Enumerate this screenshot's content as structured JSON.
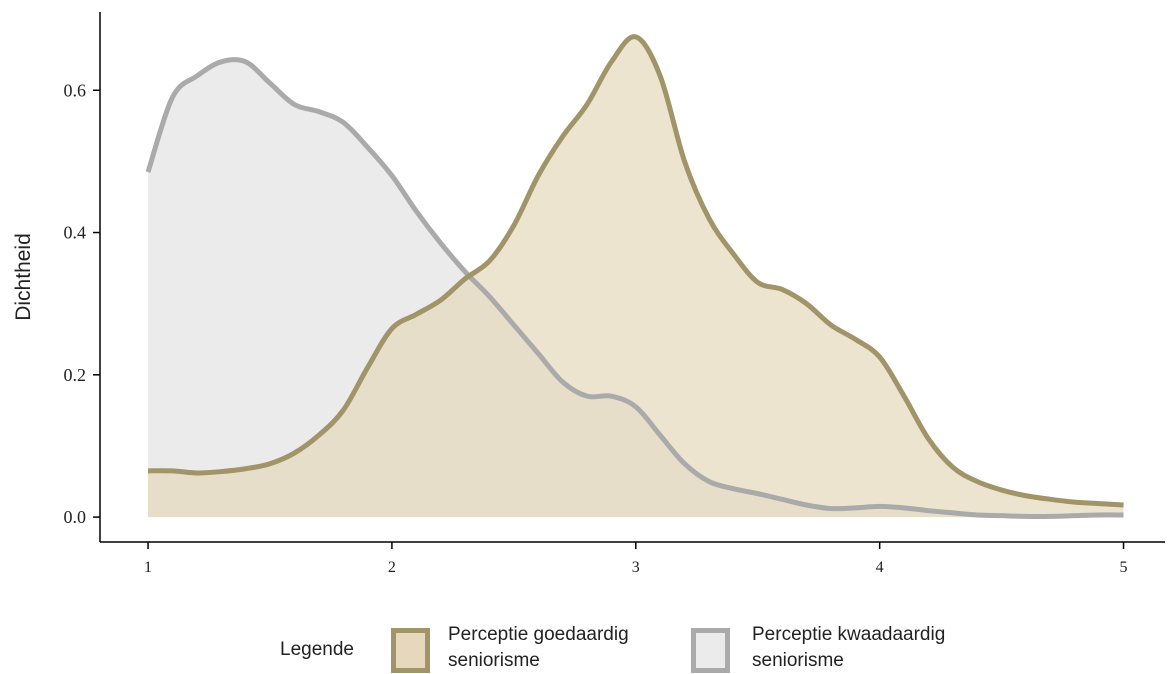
{
  "chart_data": {
    "type": "area",
    "y_label": "Dichtheid",
    "legend_title": "Legende",
    "x": [
      1.0,
      1.1,
      1.2,
      1.3,
      1.4,
      1.5,
      1.6,
      1.7,
      1.8,
      1.9,
      2.0,
      2.1,
      2.2,
      2.3,
      2.4,
      2.5,
      2.6,
      2.7,
      2.8,
      2.9,
      3.0,
      3.1,
      3.2,
      3.3,
      3.4,
      3.5,
      3.6,
      3.7,
      3.8,
      3.9,
      4.0,
      4.1,
      4.2,
      4.3,
      4.4,
      4.5,
      4.6,
      4.7,
      4.8,
      4.9,
      5.0
    ],
    "series": [
      {
        "name": "Perceptie kwaadaardig seniorisme",
        "color": "#aaaaaa",
        "fill": "#ebebeb",
        "values": [
          0.485,
          0.59,
          0.62,
          0.64,
          0.64,
          0.61,
          0.58,
          0.57,
          0.555,
          0.52,
          0.48,
          0.43,
          0.385,
          0.345,
          0.31,
          0.27,
          0.23,
          0.19,
          0.17,
          0.17,
          0.155,
          0.115,
          0.075,
          0.05,
          0.04,
          0.033,
          0.025,
          0.017,
          0.012,
          0.013,
          0.015,
          0.013,
          0.009,
          0.006,
          0.003,
          0.002,
          0.001,
          0.001,
          0.002,
          0.003,
          0.003
        ]
      },
      {
        "name": "Perceptie goedaardig seniorisme",
        "color": "#a09468",
        "fill": "#e6d8bc",
        "values": [
          0.065,
          0.065,
          0.062,
          0.064,
          0.068,
          0.075,
          0.09,
          0.115,
          0.15,
          0.21,
          0.265,
          0.285,
          0.305,
          0.335,
          0.36,
          0.41,
          0.48,
          0.535,
          0.58,
          0.64,
          0.675,
          0.62,
          0.5,
          0.42,
          0.37,
          0.33,
          0.32,
          0.3,
          0.27,
          0.25,
          0.225,
          0.17,
          0.11,
          0.07,
          0.05,
          0.038,
          0.03,
          0.025,
          0.021,
          0.019,
          0.017
        ]
      }
    ],
    "xlim": [
      0.803,
      5.17
    ],
    "xticks": [
      1,
      2,
      3,
      4,
      5
    ],
    "ylim": [
      -0.035,
      0.71
    ],
    "yticks": [
      {
        "value": 0,
        "label": "0.0"
      },
      0.2,
      0.4,
      0.6
    ]
  }
}
